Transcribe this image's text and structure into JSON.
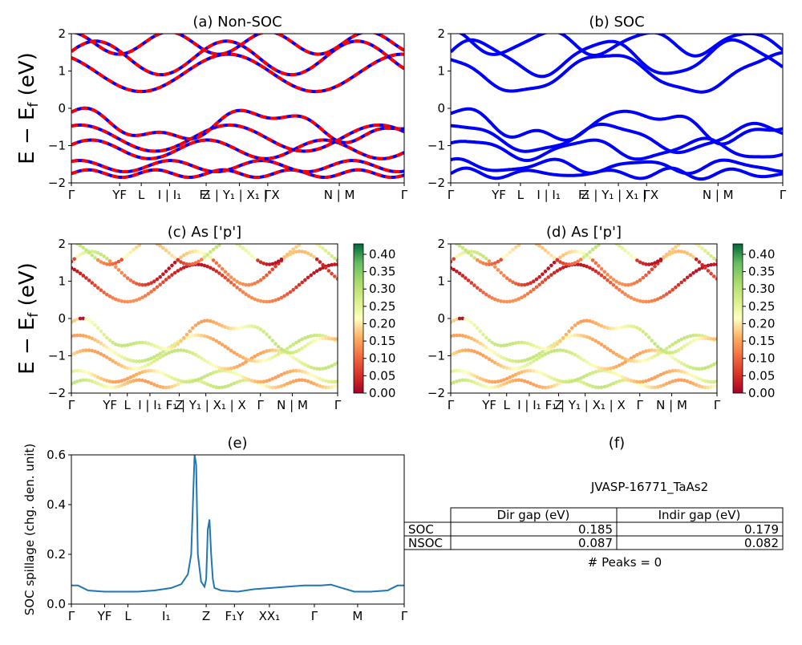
{
  "chart_data": [
    {
      "id": "a",
      "type": "line",
      "title": "(a) Non-SOC",
      "ylabel": "E − E_f (eV)",
      "ylim": [
        -2,
        2
      ],
      "yticks": [
        "−2",
        "−1",
        "0",
        "1",
        "2"
      ],
      "xticklabels": [
        "Γ",
        "YF",
        "L",
        "I | I₁",
        "Z",
        "F₁ | Y₁ | X₁ | X",
        "Γ",
        "N | M",
        "Γ"
      ],
      "xtick_positions": [
        0,
        0.145,
        0.21,
        0.295,
        0.405,
        0.505,
        0.59,
        0.805,
        1.0
      ],
      "series": [
        {
          "color": "#0000ff",
          "style": "solid"
        },
        {
          "color": "#ff0000",
          "style": "dashed"
        }
      ]
    },
    {
      "id": "b",
      "type": "line",
      "title": "(b) SOC",
      "ylim": [
        -2,
        2
      ],
      "yticks": [
        "−2",
        "−1",
        "0",
        "1",
        "2"
      ],
      "xticklabels": [
        "Γ",
        "YF",
        "L",
        "I | I₁",
        "Z",
        "F₁ | Y₁ | X₁ | X",
        "Γ",
        "N | M",
        "Γ"
      ],
      "xtick_positions": [
        0,
        0.145,
        0.21,
        0.295,
        0.405,
        0.505,
        0.59,
        0.805,
        1.0
      ],
      "series": [
        {
          "color": "#0000ff",
          "style": "solid"
        }
      ]
    },
    {
      "id": "c",
      "type": "scatter",
      "title": "(c)  As ['p']",
      "ylabel": "E − E_f (eV)",
      "ylim": [
        -2,
        2
      ],
      "yticks": [
        "−2",
        "−1",
        "0",
        "1",
        "2"
      ],
      "xticklabels": [
        "Γ",
        "YF",
        "L",
        "I | I₁",
        "Z",
        "F₁ | Y₁ | X₁ | X",
        "Γ",
        "N | M",
        "Γ"
      ],
      "xtick_positions": [
        0,
        0.145,
        0.21,
        0.295,
        0.405,
        0.505,
        0.71,
        0.83,
        1.0
      ],
      "colorbar": {
        "range": [
          0,
          0.43
        ],
        "ticks": [
          "0.00",
          "0.05",
          "0.10",
          "0.15",
          "0.20",
          "0.25",
          "0.30",
          "0.35",
          "0.40"
        ],
        "cmap": "RdYlGn"
      }
    },
    {
      "id": "d",
      "type": "scatter",
      "title": "(d) As ['p']",
      "ylim": [
        -2,
        2
      ],
      "yticks": [
        "−2",
        "−1",
        "0",
        "1",
        "2"
      ],
      "xticklabels": [
        "Γ",
        "YF",
        "L",
        "I | I₁",
        "Z",
        "F₁ | Y₁ | X₁ | X",
        "Γ",
        "N | M",
        "Γ"
      ],
      "xtick_positions": [
        0,
        0.145,
        0.21,
        0.295,
        0.405,
        0.505,
        0.71,
        0.83,
        1.0
      ],
      "colorbar": {
        "range": [
          0,
          0.43
        ],
        "ticks": [
          "0.00",
          "0.05",
          "0.10",
          "0.15",
          "0.20",
          "0.25",
          "0.30",
          "0.35",
          "0.40"
        ],
        "cmap": "RdYlGn"
      }
    },
    {
      "id": "e",
      "type": "line",
      "title": "(e)",
      "ylabel": "SOC spillage (chg. den. unit)",
      "ylim": [
        0,
        0.6
      ],
      "yticks": [
        "0.0",
        "0.2",
        "0.4",
        "0.6"
      ],
      "xticklabels": [
        "Γ",
        "YF",
        "L",
        "I₁",
        "Z",
        "F₁Y",
        "XX₁",
        "Γ",
        "M",
        "Γ"
      ],
      "xtick_positions": [
        0,
        0.1,
        0.17,
        0.285,
        0.405,
        0.49,
        0.595,
        0.73,
        0.86,
        1.0
      ],
      "color": "#1f77b4",
      "x": [
        0,
        0.02,
        0.05,
        0.1,
        0.15,
        0.2,
        0.25,
        0.3,
        0.33,
        0.35,
        0.36,
        0.365,
        0.37,
        0.375,
        0.38,
        0.39,
        0.4,
        0.405,
        0.41,
        0.415,
        0.42,
        0.425,
        0.43,
        0.45,
        0.5,
        0.55,
        0.6,
        0.65,
        0.7,
        0.75,
        0.78,
        0.8,
        0.85,
        0.9,
        0.95,
        0.98,
        1.0
      ],
      "y": [
        0.075,
        0.075,
        0.055,
        0.05,
        0.05,
        0.05,
        0.055,
        0.065,
        0.08,
        0.12,
        0.2,
        0.4,
        0.6,
        0.56,
        0.2,
        0.09,
        0.07,
        0.1,
        0.3,
        0.34,
        0.2,
        0.1,
        0.065,
        0.055,
        0.05,
        0.06,
        0.065,
        0.07,
        0.075,
        0.075,
        0.078,
        0.07,
        0.05,
        0.05,
        0.055,
        0.075,
        0.075
      ]
    }
  ],
  "panel_f": {
    "title": "(f)",
    "material": "JVASP-16771_TaAs2",
    "headers": [
      "Dir gap (eV)",
      "Indir gap (eV)"
    ],
    "rows": [
      {
        "label": "SOC",
        "dir": "0.185",
        "indir": "0.179"
      },
      {
        "label": "NSOC",
        "dir": "0.087",
        "indir": "0.082"
      }
    ],
    "peaks": "# Peaks = 0"
  }
}
